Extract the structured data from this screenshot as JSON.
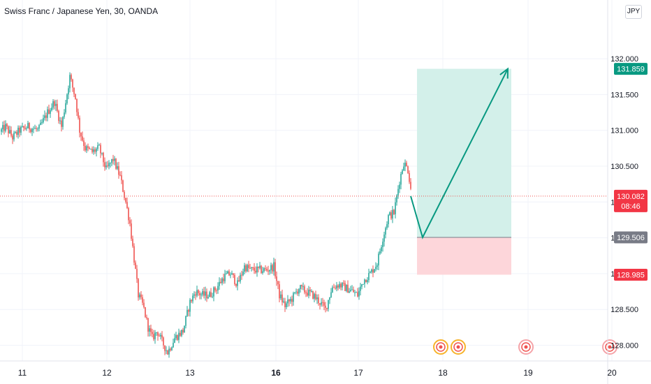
{
  "header": {
    "title": "Swiss Franc / Japanese Yen, 30, OANDA",
    "currency_badge": "JPY"
  },
  "chart_data": {
    "type": "candlestick",
    "symbol": "CHFJPY",
    "interval": "30",
    "source": "OANDA",
    "y_range": [
      127.85,
      132.35
    ],
    "y_ticks": [
      "128.000",
      "128.500",
      "129.000",
      "129.500",
      "130.000",
      "130.500",
      "131.000",
      "131.500",
      "132.000"
    ],
    "x_ticks": [
      {
        "label": "11",
        "bold": false
      },
      {
        "label": "12",
        "bold": false
      },
      {
        "label": "13",
        "bold": false
      },
      {
        "label": "16",
        "bold": true
      },
      {
        "label": "17",
        "bold": false
      },
      {
        "label": "18",
        "bold": false
      },
      {
        "label": "19",
        "bold": false
      },
      {
        "label": "20",
        "bold": false
      }
    ],
    "last_price": {
      "value": "130.082",
      "countdown": "08:46"
    },
    "position": {
      "target": "131.859",
      "entry": "129.506",
      "stop": "128.985"
    },
    "path_prices": [
      130.082,
      129.506,
      131.859
    ],
    "colors": {
      "up": "#26a69a",
      "down": "#ef5350",
      "grid": "#f0f3fa",
      "target_zone": "#d3f0ea",
      "stop_zone": "#fdd6da",
      "target_label": "#089981",
      "entry_label": "#787b86",
      "stop_label": "#f23645",
      "arrow": "#089981"
    },
    "event_markers": 4,
    "anchors": [
      [
        0,
        130.98
      ],
      [
        8,
        131.05
      ],
      [
        18,
        130.9
      ],
      [
        28,
        131.0
      ],
      [
        40,
        131.05
      ],
      [
        55,
        131.0
      ],
      [
        68,
        131.25
      ],
      [
        78,
        131.4
      ],
      [
        88,
        131.05
      ],
      [
        100,
        131.75
      ],
      [
        108,
        131.45
      ],
      [
        114,
        131.0
      ],
      [
        122,
        130.75
      ],
      [
        132,
        130.7
      ],
      [
        142,
        130.75
      ],
      [
        152,
        130.45
      ],
      [
        162,
        130.6
      ],
      [
        172,
        130.35
      ],
      [
        180,
        130.0
      ],
      [
        186,
        129.7
      ],
      [
        192,
        129.2
      ],
      [
        198,
        128.7
      ],
      [
        205,
        128.55
      ],
      [
        212,
        128.25
      ],
      [
        218,
        128.1
      ],
      [
        225,
        128.2
      ],
      [
        232,
        128.05
      ],
      [
        240,
        127.9
      ],
      [
        250,
        128.1
      ],
      [
        262,
        128.2
      ],
      [
        272,
        128.6
      ],
      [
        280,
        128.75
      ],
      [
        290,
        128.7
      ],
      [
        300,
        128.7
      ],
      [
        310,
        128.8
      ],
      [
        320,
        128.95
      ],
      [
        330,
        129.0
      ],
      [
        340,
        128.85
      ],
      [
        350,
        129.1
      ],
      [
        360,
        129.05
      ],
      [
        372,
        129.05
      ],
      [
        382,
        129.05
      ],
      [
        392,
        129.1
      ],
      [
        400,
        128.7
      ],
      [
        408,
        128.55
      ],
      [
        418,
        128.65
      ],
      [
        428,
        128.8
      ],
      [
        438,
        128.75
      ],
      [
        448,
        128.7
      ],
      [
        458,
        128.6
      ],
      [
        466,
        128.5
      ],
      [
        475,
        128.8
      ],
      [
        485,
        128.85
      ],
      [
        495,
        128.8
      ],
      [
        505,
        128.75
      ],
      [
        512,
        128.7
      ],
      [
        520,
        128.9
      ],
      [
        530,
        129.0
      ],
      [
        540,
        129.15
      ],
      [
        548,
        129.5
      ],
      [
        556,
        129.8
      ],
      [
        564,
        129.85
      ],
      [
        572,
        130.3
      ],
      [
        578,
        130.55
      ],
      [
        584,
        130.45
      ],
      [
        590,
        130.08
      ]
    ]
  }
}
